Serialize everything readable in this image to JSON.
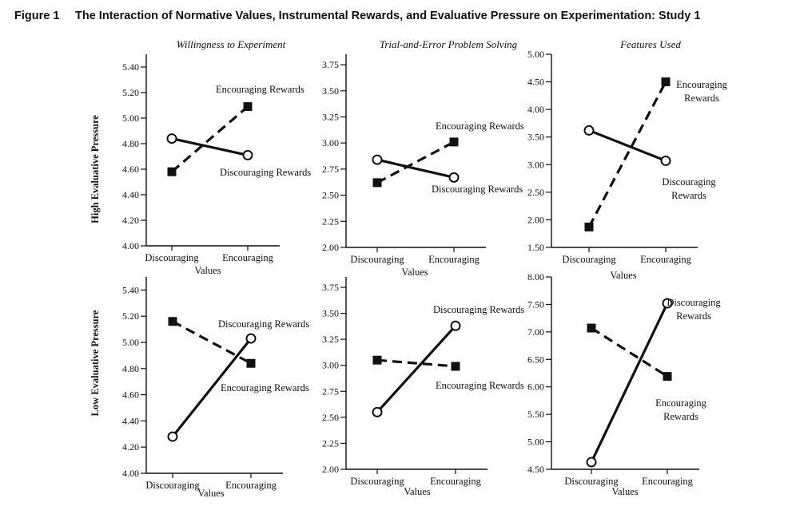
{
  "figure_label": "Figure 1",
  "figure_title": "The Interaction of Normative Values, Instrumental Rewards, and Evaluative Pressure on Experimentation: Study 1",
  "column_titles": [
    "Willingness to Experiment",
    "Trial-and-Error Problem Solving",
    "Features Used"
  ],
  "row_labels": [
    "High Evaluative Pressure",
    "Low Evaluative Pressure"
  ],
  "chart_data": [
    {
      "type": "line",
      "title": "Willingness to Experiment",
      "row_label": "High Evaluative Pressure",
      "categories": [
        "Discouraging",
        "Encouraging"
      ],
      "xlabel": "Values",
      "ylim": [
        4.0,
        5.5
      ],
      "yticks": [
        4.0,
        4.2,
        4.4,
        4.6,
        4.8,
        5.0,
        5.2,
        5.4
      ],
      "ytick_labels": [
        "4.00",
        "4.20",
        "4.40",
        "4.60",
        "4.80",
        "5.00",
        "5.20",
        "5.40"
      ],
      "series": [
        {
          "name": "Discouraging Rewards",
          "values": [
            4.84,
            4.71
          ],
          "style": "solid",
          "marker": "open-circle"
        },
        {
          "name": "Encouraging Rewards",
          "values": [
            4.58,
            5.09
          ],
          "style": "dashed",
          "marker": "filled-square"
        }
      ]
    },
    {
      "type": "line",
      "title": "Trial-and-Error Problem Solving",
      "row_label": "High Evaluative Pressure",
      "categories": [
        "Discouraging",
        "Encouraging"
      ],
      "xlabel": "Values",
      "ylim": [
        2.0,
        3.85
      ],
      "yticks": [
        2.0,
        2.25,
        2.5,
        2.75,
        3.0,
        3.25,
        3.5,
        3.75
      ],
      "ytick_labels": [
        "2.00",
        "2.25",
        "2.50",
        "2.75",
        "3.00",
        "3.25",
        "3.50",
        "3.75"
      ],
      "series": [
        {
          "name": "Discouraging Rewards",
          "values": [
            2.84,
            2.67
          ],
          "style": "solid",
          "marker": "open-circle"
        },
        {
          "name": "Encouraging Rewards",
          "values": [
            2.62,
            3.01
          ],
          "style": "dashed",
          "marker": "filled-square"
        }
      ]
    },
    {
      "type": "line",
      "title": "Features Used",
      "row_label": "High Evaluative Pressure",
      "categories": [
        "Discouraging",
        "Encouraging"
      ],
      "xlabel": "Values",
      "ylim": [
        1.5,
        5.0
      ],
      "yticks": [
        1.5,
        2.0,
        2.5,
        3.0,
        3.5,
        4.0,
        4.5,
        5.0
      ],
      "ytick_labels": [
        "1.50",
        "2.00",
        "2.50",
        "3.00",
        "3.50",
        "4.00",
        "4.50",
        "5.00"
      ],
      "series": [
        {
          "name": "Discouraging Rewards",
          "values": [
            3.62,
            3.07
          ],
          "style": "solid",
          "marker": "open-circle"
        },
        {
          "name": "Encouraging Rewards",
          "values": [
            1.87,
            4.5
          ],
          "style": "dashed",
          "marker": "filled-square"
        }
      ]
    },
    {
      "type": "line",
      "title": "Willingness to Experiment",
      "row_label": "Low Evaluative Pressure",
      "categories": [
        "Discouraging",
        "Encouraging"
      ],
      "xlabel": "Values",
      "ylim": [
        4.0,
        5.5
      ],
      "yticks": [
        4.0,
        4.2,
        4.4,
        4.6,
        4.8,
        5.0,
        5.2,
        5.4
      ],
      "ytick_labels": [
        "4.00",
        "4.20",
        "4.40",
        "4.60",
        "4.80",
        "5.00",
        "5.20",
        "5.40"
      ],
      "series": [
        {
          "name": "Discouraging Rewards",
          "values": [
            4.28,
            5.03
          ],
          "style": "solid",
          "marker": "open-circle"
        },
        {
          "name": "Encouraging Rewards",
          "values": [
            5.16,
            4.84
          ],
          "style": "dashed",
          "marker": "filled-square"
        }
      ]
    },
    {
      "type": "line",
      "title": "Trial-and-Error Problem Solving",
      "row_label": "Low Evaluative Pressure",
      "categories": [
        "Discouraging",
        "Encouraging"
      ],
      "xlabel": "Values",
      "ylim": [
        2.0,
        3.85
      ],
      "yticks": [
        2.0,
        2.25,
        2.5,
        2.75,
        3.0,
        3.25,
        3.5,
        3.75
      ],
      "ytick_labels": [
        "2.00",
        "2.25",
        "2.50",
        "2.75",
        "3.00",
        "3.25",
        "3.50",
        "3.75"
      ],
      "series": [
        {
          "name": "Discouraging Rewards",
          "values": [
            2.55,
            3.38
          ],
          "style": "solid",
          "marker": "open-circle"
        },
        {
          "name": "Encouraging Rewards",
          "values": [
            3.05,
            2.99
          ],
          "style": "dashed",
          "marker": "filled-square"
        }
      ]
    },
    {
      "type": "line",
      "title": "Features Used",
      "row_label": "Low Evaluative Pressure",
      "categories": [
        "Discouraging",
        "Encouraging"
      ],
      "xlabel": "Values",
      "ylim": [
        4.5,
        8.0
      ],
      "yticks": [
        4.5,
        5.0,
        5.5,
        6.0,
        6.5,
        7.0,
        7.5,
        8.0
      ],
      "ytick_labels": [
        "4.50",
        "5.00",
        "5.50",
        "6.00",
        "6.50",
        "7.00",
        "7.50",
        "8.00"
      ],
      "series": [
        {
          "name": "Discouraging Rewards",
          "values": [
            4.63,
            7.52
          ],
          "style": "solid",
          "marker": "open-circle"
        },
        {
          "name": "Encouraging Rewards",
          "values": [
            7.07,
            6.19
          ],
          "style": "dashed",
          "marker": "filled-square"
        }
      ]
    }
  ]
}
